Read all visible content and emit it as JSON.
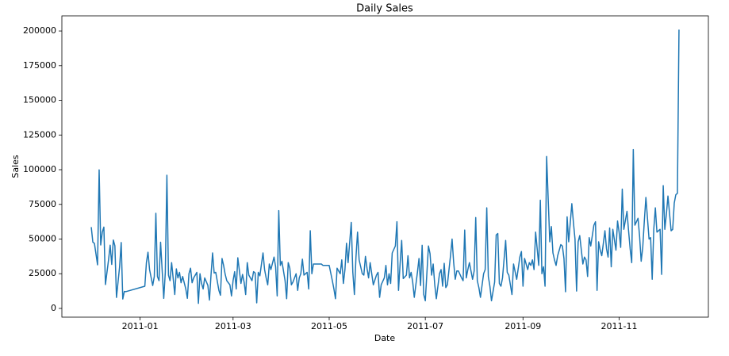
{
  "chart_data": {
    "type": "line",
    "title": "Daily Sales",
    "x_label": "Date",
    "y_label": "Sales",
    "color": "#1f77b4",
    "x": [
      14944,
      14945,
      14946,
      14948,
      14949,
      14950,
      14951,
      14952,
      14953,
      14955,
      14956,
      14957,
      14958,
      14959,
      14960,
      14962,
      14963,
      14964,
      14965,
      14966,
      14978,
      14979,
      14980,
      14981,
      14983,
      14984,
      14985,
      14986,
      14987,
      14988,
      14990,
      14991,
      14992,
      14993,
      14994,
      14995,
      14997,
      14998,
      14999,
      15000,
      15001,
      15002,
      15004,
      15005,
      15006,
      15007,
      15008,
      15009,
      15011,
      15012,
      15013,
      15014,
      15015,
      15016,
      15018,
      15019,
      15020,
      15021,
      15022,
      15023,
      15025,
      15026,
      15027,
      15028,
      15029,
      15030,
      15032,
      15033,
      15034,
      15035,
      15036,
      15037,
      15039,
      15040,
      15041,
      15042,
      15043,
      15044,
      15046,
      15047,
      15048,
      15049,
      15050,
      15051,
      15053,
      15054,
      15055,
      15056,
      15057,
      15058,
      15060,
      15061,
      15062,
      15063,
      15064,
      15065,
      15067,
      15068,
      15069,
      15070,
      15071,
      15072,
      15074,
      15075,
      15076,
      15077,
      15078,
      15079,
      15081,
      15082,
      15083,
      15084,
      15085,
      15090,
      15091,
      15092,
      15095,
      15097,
      15098,
      15099,
      15100,
      15102,
      15103,
      15104,
      15105,
      15106,
      15107,
      15109,
      15110,
      15111,
      15112,
      15113,
      15114,
      15116,
      15117,
      15118,
      15119,
      15120,
      15121,
      15123,
      15125,
      15126,
      15127,
      15128,
      15130,
      15131,
      15132,
      15133,
      15134,
      15135,
      15137,
      15138,
      15139,
      15140,
      15141,
      15142,
      15144,
      15145,
      15146,
      15147,
      15148,
      15149,
      15151,
      15152,
      15153,
      15154,
      15155,
      15156,
      15158,
      15159,
      15160,
      15161,
      15162,
      15163,
      15165,
      15166,
      15167,
      15168,
      15169,
      15170,
      15172,
      15173,
      15174,
      15175,
      15176,
      15177,
      15179,
      15180,
      15181,
      15182,
      15183,
      15184,
      15186,
      15187,
      15188,
      15189,
      15190,
      15191,
      15193,
      15194,
      15195,
      15196,
      15197,
      15198,
      15200,
      15201,
      15202,
      15203,
      15204,
      15205,
      15207,
      15208,
      15209,
      15210,
      15211,
      15212,
      15214,
      15216,
      15217,
      15218,
      15219,
      15221,
      15222,
      15223,
      15224,
      15225,
      15226,
      15228,
      15229,
      15230,
      15231,
      15232,
      15233,
      15235,
      15236,
      15237,
      15238,
      15239,
      15240,
      15242,
      15243,
      15244,
      15245,
      15246,
      15247,
      15249,
      15250,
      15251,
      15252,
      15253,
      15254,
      15256,
      15257,
      15258,
      15259,
      15260,
      15261,
      15263,
      15264,
      15265,
      15266,
      15267,
      15268,
      15270,
      15271,
      15272,
      15273,
      15274,
      15275,
      15277,
      15278,
      15279,
      15280,
      15281,
      15282,
      15284,
      15285,
      15286,
      15287,
      15288,
      15289,
      15291,
      15292,
      15293,
      15294,
      15295,
      15296,
      15298,
      15299,
      15300,
      15301,
      15302,
      15303,
      15305,
      15306,
      15307,
      15308,
      15309,
      15310,
      15312,
      15313,
      15314,
      15315,
      15316,
      15317
    ],
    "values": [
      58600,
      47800,
      46900,
      31400,
      99900,
      45700,
      55000,
      58600,
      17200,
      35300,
      45600,
      31700,
      49300,
      45100,
      7900,
      30200,
      47500,
      6800,
      12200,
      12100,
      16000,
      33000,
      40500,
      28000,
      16500,
      23000,
      68600,
      23000,
      20000,
      47700,
      7200,
      26000,
      96000,
      24000,
      20000,
      33000,
      10000,
      28500,
      22000,
      26000,
      18500,
      23000,
      14000,
      7300,
      25000,
      29000,
      18500,
      22000,
      26000,
      3600,
      25000,
      18000,
      14000,
      22000,
      16600,
      6000,
      24000,
      40000,
      25500,
      26000,
      13000,
      9500,
      36000,
      31000,
      24500,
      20000,
      17000,
      9000,
      20000,
      26500,
      14000,
      36500,
      18000,
      24500,
      19000,
      10000,
      33000,
      24000,
      20000,
      26500,
      25500,
      4000,
      26000,
      23500,
      40000,
      28000,
      22000,
      17000,
      32000,
      28000,
      37000,
      30000,
      9000,
      70500,
      31000,
      34000,
      20000,
      7000,
      33000,
      29000,
      17000,
      19000,
      25000,
      13000,
      22000,
      25000,
      35500,
      24000,
      26000,
      14000,
      56000,
      25000,
      32000,
      32000,
      31000,
      31000,
      31000,
      20000,
      14000,
      7000,
      29000,
      25000,
      35000,
      18000,
      28000,
      47000,
      33000,
      62000,
      26000,
      10000,
      37000,
      55000,
      35000,
      25000,
      24000,
      37500,
      29000,
      22000,
      33000,
      17000,
      24000,
      26000,
      8000,
      17000,
      22000,
      31000,
      17000,
      25000,
      18000,
      40000,
      45000,
      62500,
      13000,
      32000,
      49000,
      21500,
      24000,
      38000,
      22000,
      26000,
      19000,
      8000,
      26000,
      36000,
      16500,
      45500,
      10000,
      5500,
      45000,
      39500,
      24000,
      32000,
      17000,
      7000,
      25000,
      28000,
      16000,
      32500,
      15000,
      17000,
      38000,
      50000,
      33000,
      21000,
      27000,
      27000,
      22000,
      20000,
      56500,
      22000,
      28000,
      33000,
      21000,
      27000,
      65500,
      20000,
      15000,
      8000,
      25000,
      28000,
      72500,
      23000,
      16000,
      5500,
      19000,
      53000,
      54000,
      18000,
      16000,
      22000,
      49000,
      26000,
      24000,
      17000,
      10000,
      32000,
      21000,
      37000,
      41000,
      16000,
      36000,
      28000,
      33000,
      31000,
      35000,
      28000,
      55000,
      31000,
      78000,
      25000,
      30000,
      16000,
      109500,
      48000,
      59000,
      40000,
      35000,
      31000,
      38000,
      46000,
      45000,
      36000,
      12000,
      66000,
      48000,
      75500,
      62000,
      50000,
      12500,
      48000,
      52500,
      32000,
      37000,
      35000,
      23000,
      51000,
      45000,
      60000,
      62500,
      13000,
      48000,
      42000,
      38000,
      56000,
      43000,
      37000,
      58000,
      30000,
      57000,
      42000,
      63000,
      55000,
      44000,
      86000,
      57000,
      70000,
      56000,
      43000,
      33000,
      114500,
      60000,
      65000,
      52000,
      34000,
      44000,
      63000,
      80000,
      50000,
      51000,
      21000,
      57000,
      72500,
      55000,
      57000,
      24500,
      88500,
      57000,
      68000,
      81000,
      56000,
      57000,
      76000,
      82000,
      83000,
      201000
    ],
    "xlim": [
      14925.35,
      15335.65
    ],
    "xticks": [
      {
        "value": 14975,
        "label": "2011-01"
      },
      {
        "value": 15034,
        "label": "2011-03"
      },
      {
        "value": 15095,
        "label": "2011-05"
      },
      {
        "value": 15156,
        "label": "2011-07"
      },
      {
        "value": 15218,
        "label": "2011-09"
      },
      {
        "value": 15279,
        "label": "2011-11"
      }
    ],
    "ylim": [
      -6300,
      210900
    ],
    "yticks": [
      0,
      25000,
      50000,
      75000,
      100000,
      125000,
      150000,
      175000,
      200000
    ]
  }
}
